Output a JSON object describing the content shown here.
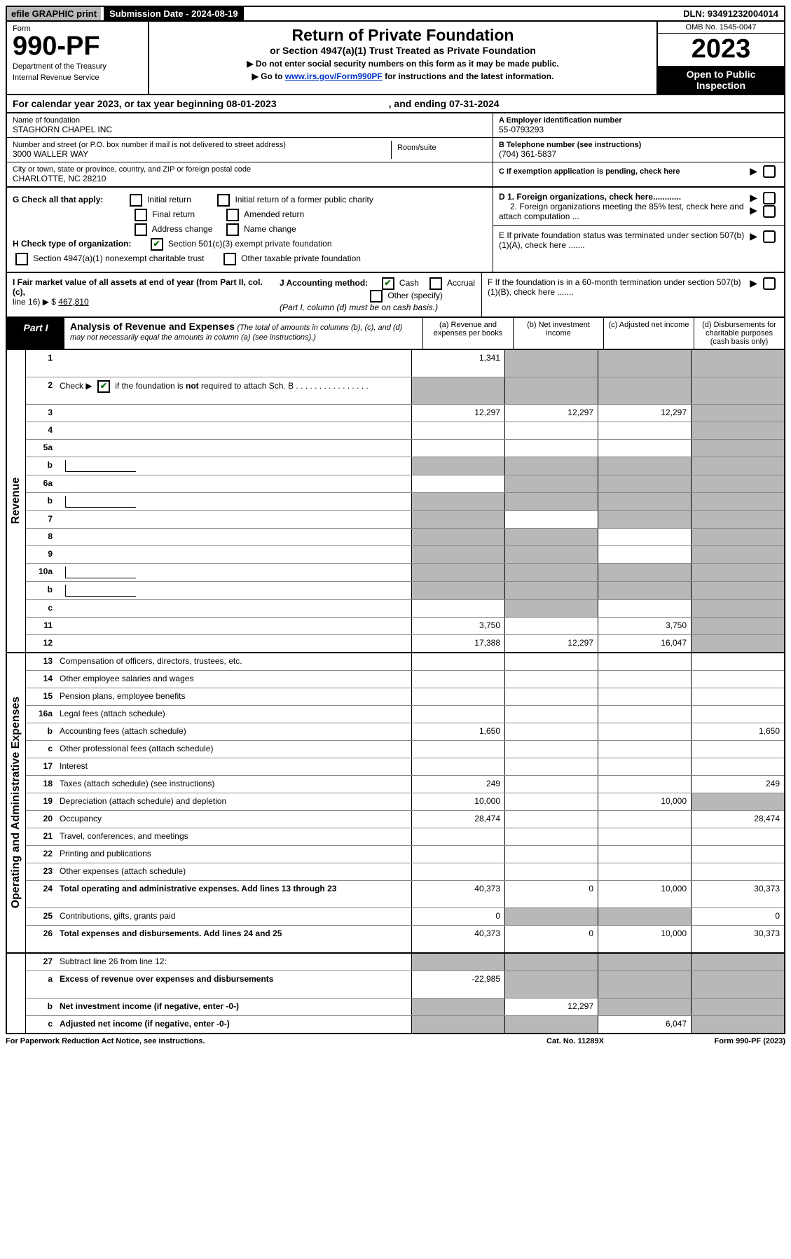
{
  "topbar": {
    "efile": "efile GRAPHIC print",
    "submission": "Submission Date - 2024-08-19",
    "dln": "DLN: 93491232004014"
  },
  "header": {
    "form_label": "Form",
    "form_number": "990-PF",
    "dept1": "Department of the Treasury",
    "dept2": "Internal Revenue Service",
    "title": "Return of Private Foundation",
    "subtitle": "or Section 4947(a)(1) Trust Treated as Private Foundation",
    "instr1": "▶ Do not enter social security numbers on this form as it may be made public.",
    "instr2_pre": "▶ Go to ",
    "instr2_link": "www.irs.gov/Form990PF",
    "instr2_post": " for instructions and the latest information.",
    "omb": "OMB No. 1545-0047",
    "year": "2023",
    "open1": "Open to Public",
    "open2": "Inspection"
  },
  "calyear": {
    "text1": "For calendar year 2023, or tax year beginning 08-01-2023",
    "text2": ", and ending 07-31-2024"
  },
  "ident": {
    "name_label": "Name of foundation",
    "name_val": "STAGHORN CHAPEL INC",
    "addr_label": "Number and street (or P.O. box number if mail is not delivered to street address)",
    "addr_val": "3000 WALLER WAY",
    "room_label": "Room/suite",
    "city_label": "City or town, state or province, country, and ZIP or foreign postal code",
    "city_val": "CHARLOTTE, NC  28210",
    "ein_label": "A Employer identification number",
    "ein_val": "55-0793293",
    "phone_label": "B Telephone number (see instructions)",
    "phone_val": "(704) 361-5837",
    "exempt_label": "C If exemption application is pending, check here"
  },
  "checks": {
    "g_label": "G Check all that apply:",
    "g1": "Initial return",
    "g2": "Initial return of a former public charity",
    "g3": "Final return",
    "g4": "Amended return",
    "g5": "Address change",
    "g6": "Name change",
    "h_label": "H Check type of organization:",
    "h1": "Section 501(c)(3) exempt private foundation",
    "h2": "Section 4947(a)(1) nonexempt charitable trust",
    "h3": "Other taxable private foundation",
    "d1": "D 1. Foreign organizations, check here............",
    "d2": "2. Foreign organizations meeting the 85% test, check here and attach computation ...",
    "e": "E  If private foundation status was terminated under section 507(b)(1)(A), check here .......",
    "f": "F  If the foundation is in a 60-month termination under section 507(b)(1)(B), check here ......."
  },
  "fmv": {
    "i_label": "I Fair market value of all assets at end of year (from Part II, col. (c),",
    "i_line": "line 16) ▶ $",
    "i_val": "467,810",
    "j_label": "J Accounting method:",
    "j1": "Cash",
    "j2": "Accrual",
    "j3": "Other (specify)",
    "j_note": "(Part I, column (d) must be on cash basis.)"
  },
  "part1": {
    "label": "Part I",
    "title": "Analysis of Revenue and Expenses",
    "note": "(The total of amounts in columns (b), (c), and (d) may not necessarily equal the amounts in column (a) (see instructions).)",
    "col_a": "(a)  Revenue and expenses per books",
    "col_b": "(b)  Net investment income",
    "col_c": "(c)  Adjusted net income",
    "col_d": "(d)  Disbursements for charitable purposes (cash basis only)"
  },
  "sides": {
    "revenue": "Revenue",
    "expenses": "Operating and Administrative Expenses"
  },
  "rows": [
    {
      "n": "1",
      "d": "",
      "a": "1,341",
      "b": "",
      "c": "",
      "tall": true,
      "sb": true,
      "sc": true,
      "sd": true
    },
    {
      "n": "2",
      "d": "",
      "a": "",
      "b": "",
      "c": "",
      "tall": true,
      "bold_not": true,
      "sa": true,
      "sb": true,
      "sc": true,
      "sd": true
    },
    {
      "n": "3",
      "d": "",
      "a": "12,297",
      "b": "12,297",
      "c": "12,297",
      "sd": true
    },
    {
      "n": "4",
      "d": "",
      "a": "",
      "b": "",
      "c": "",
      "sd": true
    },
    {
      "n": "5a",
      "d": "",
      "a": "",
      "b": "",
      "c": "",
      "sd": true
    },
    {
      "n": "b",
      "d": "",
      "a": "",
      "b": "",
      "c": "",
      "sa": true,
      "sb": true,
      "sc": true,
      "sd": true,
      "subbox": true
    },
    {
      "n": "6a",
      "d": "",
      "a": "",
      "b": "",
      "c": "",
      "sb": true,
      "sc": true,
      "sd": true
    },
    {
      "n": "b",
      "d": "",
      "a": "",
      "b": "",
      "c": "",
      "sa": true,
      "sb": true,
      "sc": true,
      "sd": true,
      "subbox": true
    },
    {
      "n": "7",
      "d": "",
      "a": "",
      "b": "",
      "c": "",
      "sa": true,
      "sc": true,
      "sd": true
    },
    {
      "n": "8",
      "d": "",
      "a": "",
      "b": "",
      "c": "",
      "sa": true,
      "sb": true,
      "sd": true
    },
    {
      "n": "9",
      "d": "",
      "a": "",
      "b": "",
      "c": "",
      "sa": true,
      "sb": true,
      "sd": true
    },
    {
      "n": "10a",
      "d": "",
      "a": "",
      "b": "",
      "c": "",
      "sa": true,
      "sb": true,
      "sc": true,
      "sd": true,
      "subbox": true
    },
    {
      "n": "b",
      "d": "",
      "a": "",
      "b": "",
      "c": "",
      "sa": true,
      "sb": true,
      "sc": true,
      "sd": true,
      "subbox": true
    },
    {
      "n": "c",
      "d": "",
      "a": "",
      "b": "",
      "c": "",
      "sb": true,
      "sd": true
    },
    {
      "n": "11",
      "d": "",
      "a": "3,750",
      "b": "",
      "c": "3,750",
      "sd": true
    },
    {
      "n": "12",
      "d": "",
      "a": "17,388",
      "b": "12,297",
      "c": "16,047",
      "bold": true,
      "sd": true
    }
  ],
  "exp_rows": [
    {
      "n": "13",
      "d": "Compensation of officers, directors, trustees, etc.",
      "a": "",
      "b": "",
      "c": "",
      "e": ""
    },
    {
      "n": "14",
      "d": "Other employee salaries and wages",
      "a": "",
      "b": "",
      "c": "",
      "e": ""
    },
    {
      "n": "15",
      "d": "Pension plans, employee benefits",
      "a": "",
      "b": "",
      "c": "",
      "e": ""
    },
    {
      "n": "16a",
      "d": "Legal fees (attach schedule)",
      "a": "",
      "b": "",
      "c": "",
      "e": ""
    },
    {
      "n": "b",
      "d": "Accounting fees (attach schedule)",
      "a": "1,650",
      "b": "",
      "c": "",
      "e": "1,650"
    },
    {
      "n": "c",
      "d": "Other professional fees (attach schedule)",
      "a": "",
      "b": "",
      "c": "",
      "e": ""
    },
    {
      "n": "17",
      "d": "Interest",
      "a": "",
      "b": "",
      "c": "",
      "e": ""
    },
    {
      "n": "18",
      "d": "Taxes (attach schedule) (see instructions)",
      "a": "249",
      "b": "",
      "c": "",
      "e": "249"
    },
    {
      "n": "19",
      "d": "Depreciation (attach schedule) and depletion",
      "a": "10,000",
      "b": "",
      "c": "10,000",
      "e": "",
      "se": true
    },
    {
      "n": "20",
      "d": "Occupancy",
      "a": "28,474",
      "b": "",
      "c": "",
      "e": "28,474"
    },
    {
      "n": "21",
      "d": "Travel, conferences, and meetings",
      "a": "",
      "b": "",
      "c": "",
      "e": ""
    },
    {
      "n": "22",
      "d": "Printing and publications",
      "a": "",
      "b": "",
      "c": "",
      "e": ""
    },
    {
      "n": "23",
      "d": "Other expenses (attach schedule)",
      "a": "",
      "b": "",
      "c": "",
      "e": ""
    },
    {
      "n": "24",
      "d": "Total operating and administrative expenses. Add lines 13 through 23",
      "a": "40,373",
      "b": "0",
      "c": "10,000",
      "e": "30,373",
      "bold": true,
      "tall": true
    },
    {
      "n": "25",
      "d": "Contributions, gifts, grants paid",
      "a": "0",
      "b": "",
      "c": "",
      "e": "0",
      "sb": true,
      "sc": true
    },
    {
      "n": "26",
      "d": "Total expenses and disbursements. Add lines 24 and 25",
      "a": "40,373",
      "b": "0",
      "c": "10,000",
      "e": "30,373",
      "bold": true,
      "tall": true
    }
  ],
  "final_rows": [
    {
      "n": "27",
      "d": "Subtract line 26 from line 12:",
      "a": "",
      "b": "",
      "c": "",
      "e": "",
      "sa": true,
      "sb": true,
      "sc": true,
      "se": true
    },
    {
      "n": "a",
      "d": "Excess of revenue over expenses and disbursements",
      "a": "-22,985",
      "b": "",
      "c": "",
      "e": "",
      "bold": true,
      "tall": true,
      "sb": true,
      "sc": true,
      "se": true
    },
    {
      "n": "b",
      "d": "Net investment income (if negative, enter -0-)",
      "a": "",
      "b": "12,297",
      "c": "",
      "e": "",
      "bold": true,
      "sa": true,
      "sc": true,
      "se": true
    },
    {
      "n": "c",
      "d": "Adjusted net income (if negative, enter -0-)",
      "a": "",
      "b": "",
      "c": "6,047",
      "e": "",
      "bold": true,
      "sa": true,
      "sb": true,
      "se": true
    }
  ],
  "footer": {
    "left": "For Paperwork Reduction Act Notice, see instructions.",
    "center": "Cat. No. 11289X",
    "right": "Form 990-PF (2023)"
  }
}
